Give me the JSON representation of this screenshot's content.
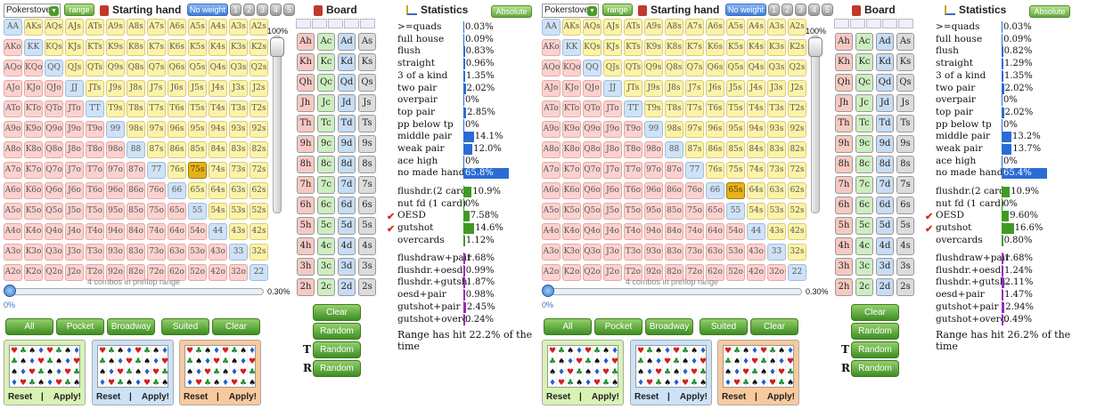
{
  "ranks": [
    "A",
    "K",
    "Q",
    "J",
    "T",
    "9",
    "8",
    "7",
    "6",
    "5",
    "4",
    "3",
    "2"
  ],
  "suits": [
    "h",
    "c",
    "d",
    "s"
  ],
  "toolbar": {
    "site_value": "Pokerstove",
    "range_label": "range",
    "starting_hand_title": "Starting hand",
    "weight_label": "No weight",
    "weight_slots": [
      "1",
      "2",
      "3",
      "4",
      "5"
    ],
    "board_title": "Board",
    "stats_title": "Statistics",
    "absolute_label": "Absolute"
  },
  "slider": {
    "vertical_top_label": "100%",
    "min_label": "0%",
    "value_label": "0.30%"
  },
  "buttons": {
    "all": "All",
    "pocket": "Pocket",
    "broadway": "Broadway",
    "suited": "Suited",
    "clear": "Clear",
    "board_clear": "Clear",
    "random": "Random",
    "turn_marker": "T",
    "river_marker": "R"
  },
  "presets": {
    "reset": "Reset",
    "apply": "Apply!",
    "separator": "|",
    "colors": [
      "#d8f2b4",
      "#cbe2f7",
      "#f8c99d"
    ]
  },
  "panels": [
    {
      "selected_hands": [
        "75s"
      ],
      "combos_text": "4 combos in preflop range",
      "stats": [
        {
          "label": ">=quads",
          "pct": "0.03%",
          "value": 0.03,
          "color": "blue"
        },
        {
          "label": "full house",
          "pct": "0.09%",
          "value": 0.09,
          "color": "blue"
        },
        {
          "label": "flush",
          "pct": "0.83%",
          "value": 0.83,
          "color": "blue"
        },
        {
          "label": "straight",
          "pct": "0.96%",
          "value": 0.96,
          "color": "blue"
        },
        {
          "label": "3 of a kind",
          "pct": "1.35%",
          "value": 1.35,
          "color": "blue"
        },
        {
          "label": "two pair",
          "pct": "2.02%",
          "value": 2.02,
          "color": "blue"
        },
        {
          "label": "overpair",
          "pct": "0%",
          "value": 0,
          "color": "blue"
        },
        {
          "label": "top pair",
          "pct": "2.85%",
          "value": 2.85,
          "color": "blue"
        },
        {
          "label": "pp below tp",
          "pct": "0%",
          "value": 0,
          "color": "blue"
        },
        {
          "label": "middle pair",
          "pct": "14.1%",
          "value": 14.1,
          "color": "blue"
        },
        {
          "label": "weak pair",
          "pct": "12.0%",
          "value": 12.0,
          "color": "blue"
        },
        {
          "label": "ace high",
          "pct": "0%",
          "value": 0,
          "color": "blue"
        },
        {
          "label": "no made hand",
          "pct": "65.8%",
          "value": 65.8,
          "color": "blue"
        }
      ],
      "draws": [
        {
          "label": "flushdr.(2 card)",
          "pct": "10.9%",
          "value": 10.9,
          "checked": false
        },
        {
          "label": "nut fd (1 card)",
          "pct": "0%",
          "value": 0,
          "checked": false
        },
        {
          "label": "OESD",
          "pct": "7.58%",
          "value": 7.58,
          "checked": true
        },
        {
          "label": "gutshot",
          "pct": "14.6%",
          "value": 14.6,
          "checked": true
        },
        {
          "label": "overcards",
          "pct": "1.12%",
          "value": 1.12,
          "checked": false
        }
      ],
      "combos": [
        {
          "label": "flushdraw+pair",
          "pct": "1.68%",
          "value": 1.68
        },
        {
          "label": "flushdr.+oesd",
          "pct": "0.99%",
          "value": 0.99
        },
        {
          "label": "flushdr.+gutsh.",
          "pct": "1.87%",
          "value": 1.87
        },
        {
          "label": "oesd+pair",
          "pct": "0.98%",
          "value": 0.98
        },
        {
          "label": "gutshot+pair",
          "pct": "2.45%",
          "value": 2.45
        },
        {
          "label": "gutshot+overc.",
          "pct": "0.24%",
          "value": 0.24
        }
      ],
      "hit_text": "Range has hit 22.2% of the time"
    },
    {
      "selected_hands": [
        "65s"
      ],
      "combos_text": "4 combos in preflop range",
      "stats": [
        {
          "label": ">=quads",
          "pct": "0.03%",
          "value": 0.03,
          "color": "blue"
        },
        {
          "label": "full house",
          "pct": "0.09%",
          "value": 0.09,
          "color": "blue"
        },
        {
          "label": "flush",
          "pct": "0.82%",
          "value": 0.82,
          "color": "blue"
        },
        {
          "label": "straight",
          "pct": "1.29%",
          "value": 1.29,
          "color": "blue"
        },
        {
          "label": "3 of a kind",
          "pct": "1.35%",
          "value": 1.35,
          "color": "blue"
        },
        {
          "label": "two pair",
          "pct": "2.02%",
          "value": 2.02,
          "color": "blue"
        },
        {
          "label": "overpair",
          "pct": "0%",
          "value": 0,
          "color": "blue"
        },
        {
          "label": "top pair",
          "pct": "2.02%",
          "value": 2.02,
          "color": "blue"
        },
        {
          "label": "pp below tp",
          "pct": "0%",
          "value": 0,
          "color": "blue"
        },
        {
          "label": "middle pair",
          "pct": "13.2%",
          "value": 13.2,
          "color": "blue"
        },
        {
          "label": "weak pair",
          "pct": "13.7%",
          "value": 13.7,
          "color": "blue"
        },
        {
          "label": "ace high",
          "pct": "0%",
          "value": 0,
          "color": "blue"
        },
        {
          "label": "no made hand",
          "pct": "65.4%",
          "value": 65.4,
          "color": "blue"
        }
      ],
      "draws": [
        {
          "label": "flushdr.(2 card)",
          "pct": "10.9%",
          "value": 10.9,
          "checked": false
        },
        {
          "label": "nut fd (1 card)",
          "pct": "0%",
          "value": 0,
          "checked": false
        },
        {
          "label": "OESD",
          "pct": "9.60%",
          "value": 9.6,
          "checked": true
        },
        {
          "label": "gutshot",
          "pct": "16.6%",
          "value": 16.6,
          "checked": true
        },
        {
          "label": "overcards",
          "pct": "0.80%",
          "value": 0.8,
          "checked": false
        }
      ],
      "combos": [
        {
          "label": "flushdraw+pair",
          "pct": "1.68%",
          "value": 1.68
        },
        {
          "label": "flushdr.+oesd",
          "pct": "1.24%",
          "value": 1.24
        },
        {
          "label": "flushdr.+gutsh.",
          "pct": "2.11%",
          "value": 2.11
        },
        {
          "label": "oesd+pair",
          "pct": "1.47%",
          "value": 1.47
        },
        {
          "label": "gutshot+pair",
          "pct": "2.94%",
          "value": 2.94
        },
        {
          "label": "gutshot+overc.",
          "pct": "0.49%",
          "value": 0.49
        }
      ],
      "hit_text": "Range has hit 26.2% of the time"
    }
  ]
}
